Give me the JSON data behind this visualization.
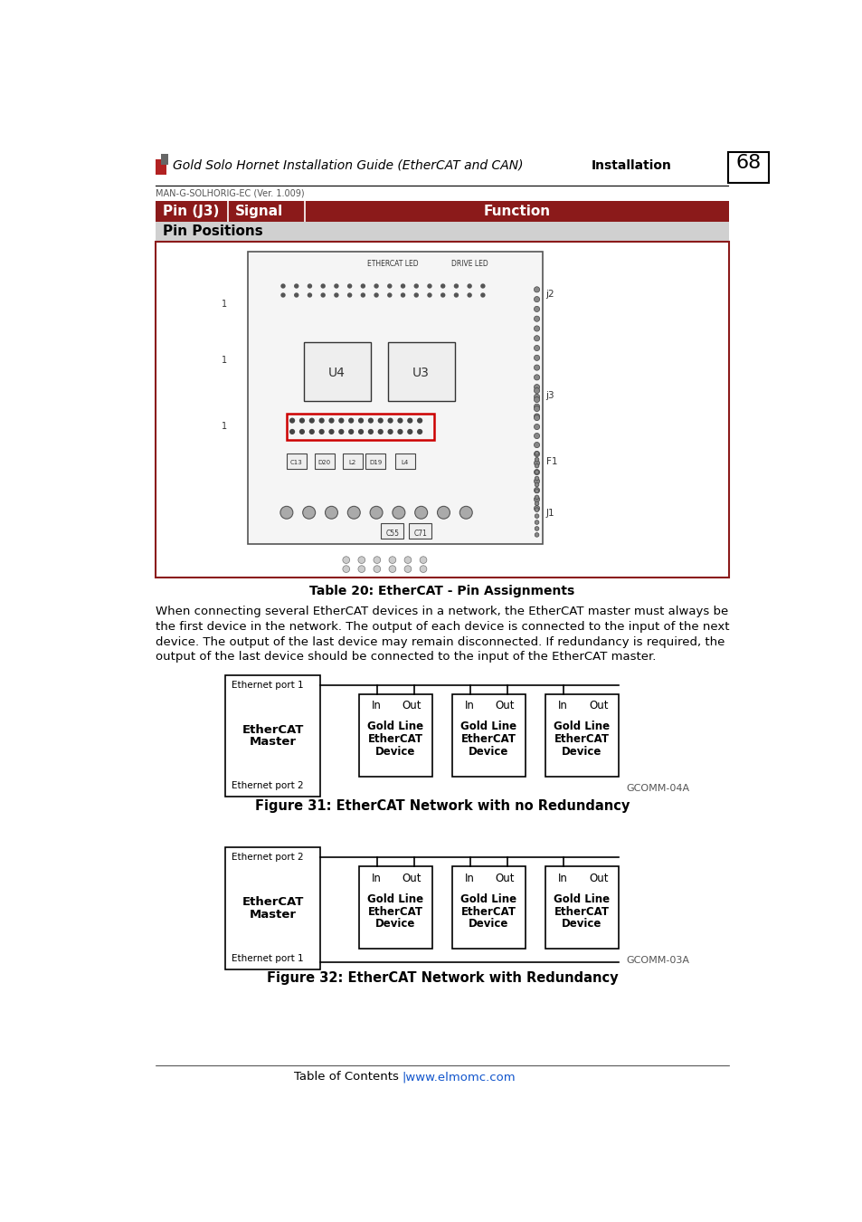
{
  "page_num": "68",
  "header_title": "Gold Solo Hornet Installation Guide (EtherCAT and CAN)",
  "header_right": "Installation",
  "header_sub": "MAN-G-SOLHORIG-EC (Ver. 1.009)",
  "table_subheader": "Pin Positions",
  "table_caption": "Table 20: EtherCAT - Pin Assignments",
  "body_lines": [
    "When connecting several EtherCAT devices in a network, the EtherCAT master must always be",
    "the first device in the network. The output of each device is connected to the input of the next",
    "device. The output of the last device may remain disconnected. If redundancy is required, the",
    "output of the last device should be connected to the input of the EtherCAT master."
  ],
  "fig31_caption": "Figure 31: EtherCAT Network with no Redundancy",
  "fig31_code": "GCOMM-04A",
  "fig32_caption": "Figure 32: EtherCAT Network with Redundancy",
  "fig32_code": "GCOMM-03A",
  "footer_left": "Table of Contents",
  "footer_right": "|www.elmomc.com",
  "dark_red": "#8B1A1A",
  "light_gray": "#D0D0D0",
  "white": "#FFFFFF",
  "black": "#000000",
  "dark_gray": "#555555",
  "link_blue": "#1155CC"
}
